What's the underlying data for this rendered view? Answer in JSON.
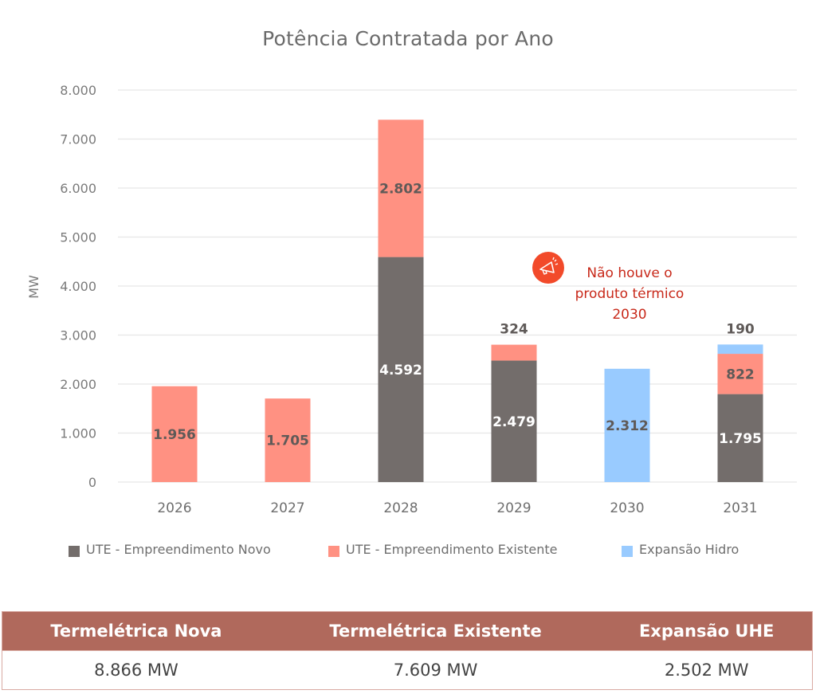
{
  "chart_data": {
    "type": "bar",
    "stacked": true,
    "title": "Potência Contratada por Ano",
    "xlabel": "",
    "ylabel": "MW",
    "ylim": [
      0,
      8000
    ],
    "yticks": [
      0,
      1000,
      2000,
      3000,
      4000,
      5000,
      6000,
      7000,
      8000
    ],
    "ytick_labels": [
      "0",
      "1.000",
      "2.000",
      "3.000",
      "4.000",
      "5.000",
      "6.000",
      "7.000",
      "8.000"
    ],
    "grid": true,
    "legend_position": "bottom",
    "categories": [
      "2026",
      "2027",
      "2028",
      "2029",
      "2030",
      "2031"
    ],
    "series": [
      {
        "name": "UTE - Empreendimento Novo",
        "color": "#736d6b",
        "label_color": "#ffffff",
        "values": [
          0,
          0,
          4592,
          2479,
          0,
          1795
        ],
        "labels": [
          "",
          "",
          "4.592",
          "2.479",
          "",
          "1.795"
        ]
      },
      {
        "name": "UTE - Empreendimento Existente",
        "color": "#ff9182",
        "label_color": "#5f5a58",
        "values": [
          1956,
          1705,
          2802,
          324,
          0,
          822
        ],
        "labels": [
          "1.956",
          "1.705",
          "2.802",
          "324",
          "",
          "822"
        ],
        "label_above": [
          false,
          false,
          false,
          true,
          false,
          false
        ]
      },
      {
        "name": "Expansão Hidro",
        "color": "#99cbff",
        "label_color": "#5f5a58",
        "values": [
          0,
          0,
          0,
          0,
          2312,
          190
        ],
        "labels": [
          "",
          "",
          "",
          "",
          "2.312",
          "190"
        ],
        "label_above": [
          false,
          false,
          false,
          false,
          false,
          true
        ]
      }
    ],
    "annotation": {
      "text_lines": [
        "Não houve o",
        "produto térmico",
        "2030"
      ],
      "icon": "megaphone-icon",
      "color": "#c8291a",
      "icon_bg": "#f24a2a"
    }
  },
  "summary_table": {
    "headers": [
      "Termelétrica Nova",
      "Termelétrica Existente",
      "Expansão UHE"
    ],
    "values": [
      "8.866 MW",
      "7.609 MW",
      "2.502 MW"
    ],
    "header_bg": "#b0695c"
  }
}
